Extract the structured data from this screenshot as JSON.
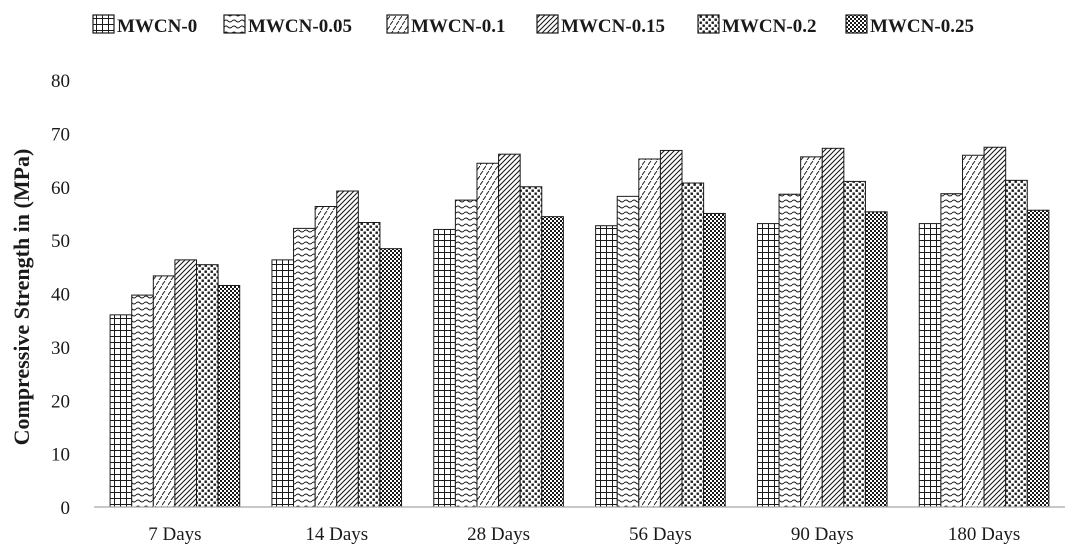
{
  "chart_data": {
    "type": "bar",
    "categories": [
      "7 Days",
      "14 Days",
      "28 Days",
      "56 Days",
      "90 Days",
      "180 Days"
    ],
    "series": [
      {
        "name": "MWCN-0",
        "pattern": "grid",
        "values": [
          36,
          46.3,
          52,
          52.7,
          53.1,
          53.1
        ]
      },
      {
        "name": "MWCN-0.05",
        "pattern": "wave",
        "values": [
          39.7,
          52.2,
          57.5,
          58.2,
          58.6,
          58.7
        ]
      },
      {
        "name": "MWCN-0.1",
        "pattern": "dashed-diagonal",
        "values": [
          43.3,
          56.3,
          64.4,
          65.2,
          65.6,
          65.9
        ]
      },
      {
        "name": "MWCN-0.15",
        "pattern": "diagonal",
        "values": [
          46.3,
          59.2,
          66.1,
          66.8,
          67.2,
          67.4
        ]
      },
      {
        "name": "MWCN-0.2",
        "pattern": "dots",
        "values": [
          45.4,
          53.3,
          60,
          60.7,
          61,
          61.2
        ]
      },
      {
        "name": "MWCN-0.25",
        "pattern": "checker",
        "values": [
          41.5,
          48.4,
          54.4,
          55,
          55.3,
          55.6
        ]
      }
    ],
    "xlabel": "",
    "ylabel": "Compressive Strength in (MPa)",
    "ylim": [
      0,
      80
    ],
    "yticks": [
      "0",
      "10",
      "20",
      "30",
      "40",
      "50",
      "60",
      "70",
      "80"
    ],
    "grid": false,
    "legend_position": "top",
    "colors": {
      "ink": "#1a1a1a",
      "background": "#ffffff"
    }
  }
}
